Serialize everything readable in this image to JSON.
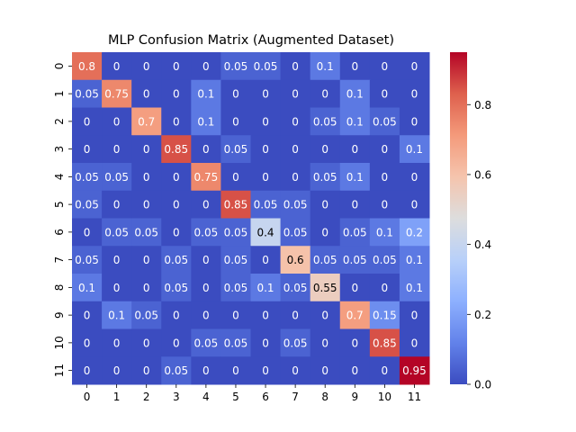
{
  "chart_data": {
    "type": "heatmap",
    "title": "MLP Confusion Matrix (Augmented Dataset)",
    "xlabel": "",
    "ylabel": "",
    "x_categories": [
      "0",
      "1",
      "2",
      "3",
      "4",
      "5",
      "6",
      "7",
      "8",
      "9",
      "10",
      "11"
    ],
    "y_categories": [
      "0",
      "1",
      "2",
      "3",
      "4",
      "5",
      "6",
      "7",
      "8",
      "9",
      "10",
      "11"
    ],
    "cell_labels": [
      [
        "0.8",
        "0",
        "0",
        "0",
        "0",
        "0.05",
        "0.05",
        "0",
        "0.1",
        "0",
        "0",
        "0"
      ],
      [
        "0.05",
        "0.75",
        "0",
        "0",
        "0.1",
        "0",
        "0",
        "0",
        "0",
        "0.1",
        "0",
        "0"
      ],
      [
        "0",
        "0",
        "0.7",
        "0",
        "0.1",
        "0",
        "0",
        "0",
        "0.05",
        "0.1",
        "0.05",
        "0"
      ],
      [
        "0",
        "0",
        "0",
        "0.85",
        "0",
        "0.05",
        "0",
        "0",
        "0",
        "0",
        "0",
        "0.1"
      ],
      [
        "0.05",
        "0.05",
        "0",
        "0",
        "0.75",
        "0",
        "0",
        "0",
        "0.05",
        "0.1",
        "0",
        "0"
      ],
      [
        "0.05",
        "0",
        "0",
        "0",
        "0",
        "0.85",
        "0.05",
        "0.05",
        "0",
        "0",
        "0",
        "0"
      ],
      [
        "0",
        "0.05",
        "0.05",
        "0",
        "0.05",
        "0.05",
        "0.4",
        "0.05",
        "0",
        "0.05",
        "0.1",
        "0.2"
      ],
      [
        "0.05",
        "0",
        "0",
        "0.05",
        "0",
        "0.05",
        "0",
        "0.6",
        "0.05",
        "0.05",
        "0.05",
        "0.1"
      ],
      [
        "0.1",
        "0",
        "0",
        "0.05",
        "0",
        "0.05",
        "0.1",
        "0.05",
        "0.55",
        "0",
        "0",
        "0.1"
      ],
      [
        "0",
        "0.1",
        "0.05",
        "0",
        "0",
        "0",
        "0",
        "0",
        "0",
        "0.7",
        "0.15",
        "0"
      ],
      [
        "0",
        "0",
        "0",
        "0",
        "0.05",
        "0.05",
        "0",
        "0.05",
        "0",
        "0",
        "0.85",
        "0"
      ],
      [
        "0",
        "0",
        "0",
        "0.05",
        "0",
        "0",
        "0",
        "0",
        "0",
        "0",
        "0",
        "0.95"
      ]
    ],
    "colormap": "coolwarm",
    "colorbar": {
      "range": [
        0.0,
        0.95
      ],
      "ticks": [
        "0.0",
        "0.2",
        "0.4",
        "0.6",
        "0.8"
      ]
    }
  }
}
